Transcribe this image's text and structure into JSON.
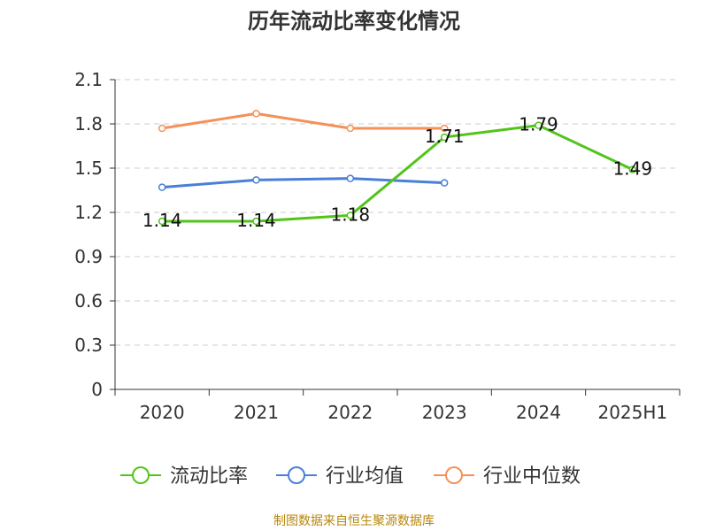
{
  "chart_data": {
    "type": "line",
    "title": "历年流动比率变化情况",
    "categories": [
      "2020",
      "2021",
      "2022",
      "2023",
      "2024",
      "2025H1"
    ],
    "yticks": [
      "0",
      "0.3",
      "0.6",
      "0.9",
      "1.2",
      "1.5",
      "1.8",
      "2.1"
    ],
    "ylim": [
      0,
      2.1
    ],
    "grid": true,
    "legend_position": "bottom",
    "series": [
      {
        "name": "流动比率",
        "color": "#52c41a",
        "values": [
          1.14,
          1.14,
          1.18,
          1.71,
          1.79,
          1.49
        ],
        "labels": [
          "1.14",
          "1.14",
          "1.18",
          "1.71",
          "1.79",
          "1.49"
        ]
      },
      {
        "name": "行业均值",
        "color": "#4a7fd8",
        "values": [
          1.37,
          1.42,
          1.43,
          1.4,
          null,
          null
        ]
      },
      {
        "name": "行业中位数",
        "color": "#f59058",
        "values": [
          1.77,
          1.87,
          1.77,
          1.77,
          null,
          null
        ]
      }
    ]
  },
  "source": "制图数据来自恒生聚源数据库"
}
